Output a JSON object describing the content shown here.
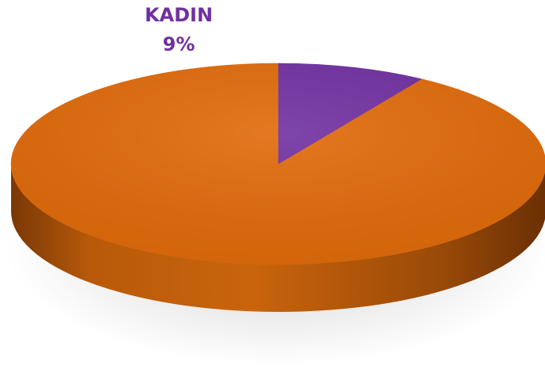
{
  "chart_data": {
    "type": "pie",
    "style": "3d",
    "slices": [
      {
        "label": "",
        "value": 91,
        "color": "#E06A0A"
      },
      {
        "label": "KADIN",
        "value": 9,
        "value_label": "9%",
        "color": "#7030A0"
      }
    ],
    "title": "",
    "legend": "none"
  }
}
